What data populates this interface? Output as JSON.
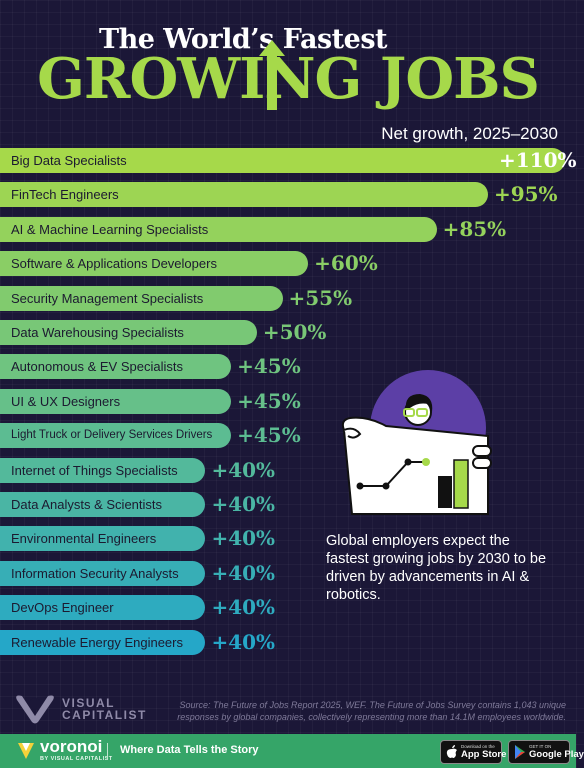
{
  "header": {
    "title_line1": "The World’s Fastest",
    "title_line2": "GROWING JOBS",
    "subtitle": "Net growth, 2025–2030"
  },
  "chart_data": {
    "type": "bar",
    "orientation": "horizontal",
    "categories": [
      "Big Data Specialists",
      "FinTech Engineers",
      "AI & Machine Learning Specialists",
      "Software & Applications Developers",
      "Security Management Specialists",
      "Data Warehousing Specialists",
      "Autonomous & EV Specialists",
      "UI & UX Designers",
      "Light Truck or Delivery Services Drivers",
      "Internet of Things Specialists",
      "Data Analysts & Scientists",
      "Environmental Engineers",
      "Information Security Analysts",
      "DevOps Engineer",
      "Renewable Energy Engineers"
    ],
    "values": [
      110,
      95,
      85,
      60,
      55,
      50,
      45,
      45,
      45,
      40,
      40,
      40,
      40,
      40,
      40
    ],
    "value_labels": [
      "+110%",
      "+95%",
      "+85%",
      "+60%",
      "+55%",
      "+50%",
      "+45%",
      "+45%",
      "+45%",
      "+40%",
      "+40%",
      "+40%",
      "+40%",
      "+40%",
      "+40%"
    ],
    "unit": "%",
    "xlim": [
      0,
      110
    ],
    "grid": false,
    "legend": "none",
    "colors": {
      "start": "#a6d94a",
      "end": "#25a7c8"
    }
  },
  "side_note": "Global employers expect the fastest growing jobs by 2030 to be driven by advancements in AI & robotics.",
  "illustration": {
    "icon": "person-holding-chart-icon",
    "colors": [
      "#5c3fa6",
      "#a6d94a",
      "#ffffff",
      "#111111"
    ]
  },
  "footer": {
    "brand_logo": "VISUAL CAPITALIST",
    "brand_line1": "VISUAL",
    "brand_line2": "CAPITALIST",
    "source": "Source: The Future of Jobs Report 2025, WEF. The Future of Jobs Survey contains 1,043 unique responses by global companies, collectively representing more than 14.1M employees worldwide.",
    "voronoi_name": "voronoi",
    "voronoi_sub": "BY VISUAL CAPITALIST",
    "tagline": "Where Data Tells the Story",
    "app_store_small": "Download on the",
    "app_store_big": "App Store",
    "google_play_small": "GET IT ON",
    "google_play_big": "Google Play",
    "bar_color": "#35a568"
  }
}
